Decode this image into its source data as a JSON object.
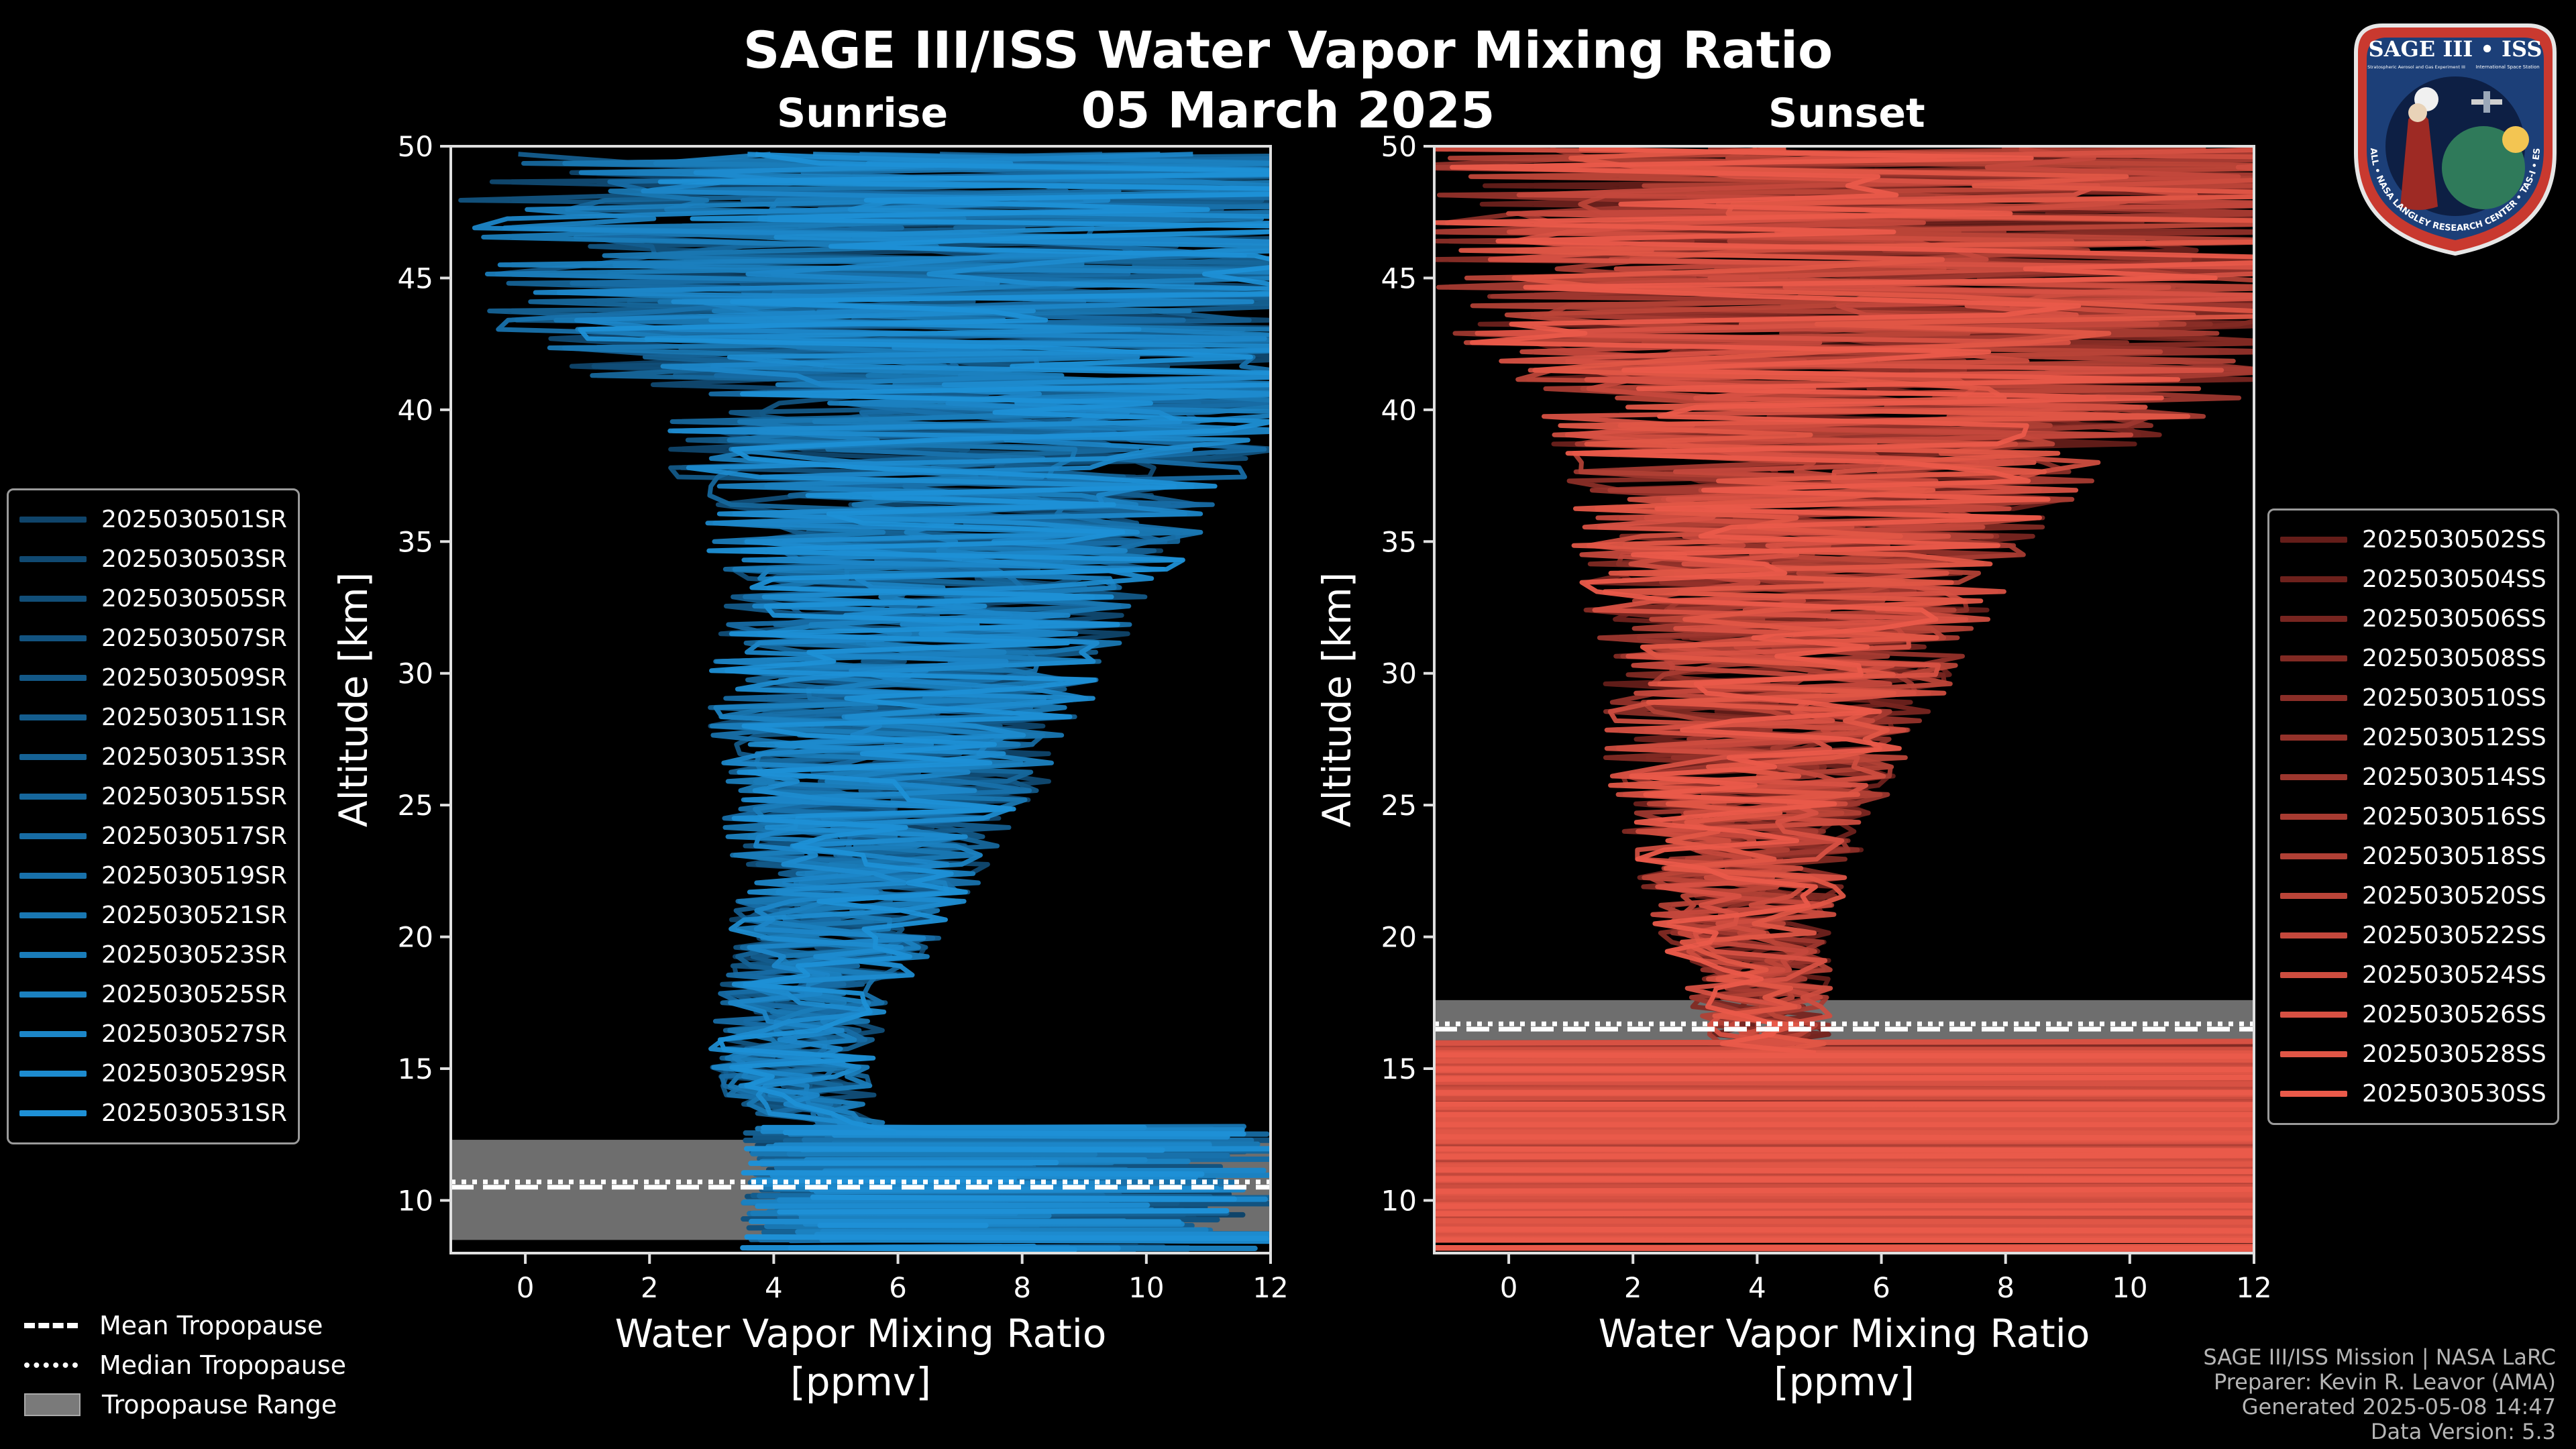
{
  "title": "SAGE III/ISS Water Vapor Mixing Ratio",
  "date": "05 March 2025",
  "colors": {
    "sunrise": "#1e90d6",
    "sunset": "#ea5a4a",
    "tropopause_range": "#7a7a7a",
    "background": "#000000"
  },
  "chart_data": [
    {
      "type": "line",
      "title": "Sunrise",
      "xlabel": "Water Vapor Mixing Ratio\n[ppmv]",
      "ylabel": "Altitude [km]",
      "xlim": [
        -1.2,
        12
      ],
      "ylim": [
        8,
        50
      ],
      "xticks": [
        0,
        2,
        4,
        6,
        8,
        10,
        12
      ],
      "yticks": [
        10,
        15,
        20,
        25,
        30,
        35,
        40,
        45,
        50
      ],
      "grid": false,
      "legend_position": "left",
      "series": [
        {
          "name": "2025030501SR"
        },
        {
          "name": "2025030503SR"
        },
        {
          "name": "2025030505SR"
        },
        {
          "name": "2025030507SR"
        },
        {
          "name": "2025030509SR"
        },
        {
          "name": "2025030511SR"
        },
        {
          "name": "2025030513SR"
        },
        {
          "name": "2025030515SR"
        },
        {
          "name": "2025030517SR"
        },
        {
          "name": "2025030519SR"
        },
        {
          "name": "2025030521SR"
        },
        {
          "name": "2025030523SR"
        },
        {
          "name": "2025030525SR"
        },
        {
          "name": "2025030527SR"
        },
        {
          "name": "2025030529SR"
        },
        {
          "name": "2025030531SR"
        }
      ],
      "envelope_center": [
        [
          12.5,
          5.3
        ],
        [
          13.5,
          4.5
        ],
        [
          15,
          4.3
        ],
        [
          17,
          4.4
        ],
        [
          19,
          4.9
        ],
        [
          22,
          5.3
        ],
        [
          25,
          5.7
        ],
        [
          28,
          5.9
        ],
        [
          31,
          6.3
        ],
        [
          34,
          6.8
        ],
        [
          37,
          6.9
        ],
        [
          40,
          7.5
        ],
        [
          43,
          7.5
        ],
        [
          50,
          7.5
        ]
      ],
      "envelope_width": [
        [
          12.5,
          0.8
        ],
        [
          14,
          1.2
        ],
        [
          16,
          1.4
        ],
        [
          19,
          1.6
        ],
        [
          22,
          2.0
        ],
        [
          25,
          2.6
        ],
        [
          28,
          3.0
        ],
        [
          32,
          3.4
        ],
        [
          36,
          4.2
        ],
        [
          40,
          5.4
        ],
        [
          43,
          8.0
        ],
        [
          50,
          9.0
        ]
      ],
      "tropopause": {
        "mean": 10.5,
        "median": 10.7,
        "range": [
          8.5,
          12.3
        ]
      }
    },
    {
      "type": "line",
      "title": "Sunset",
      "xlabel": "Water Vapor Mixing Ratio\n[ppmv]",
      "ylabel": "Altitude [km]",
      "xlim": [
        -1.2,
        12
      ],
      "ylim": [
        8,
        50
      ],
      "xticks": [
        0,
        2,
        4,
        6,
        8,
        10,
        12
      ],
      "yticks": [
        10,
        15,
        20,
        25,
        30,
        35,
        40,
        45,
        50
      ],
      "grid": false,
      "legend_position": "right",
      "series": [
        {
          "name": "2025030502SS"
        },
        {
          "name": "2025030504SS"
        },
        {
          "name": "2025030506SS"
        },
        {
          "name": "2025030508SS"
        },
        {
          "name": "2025030510SS"
        },
        {
          "name": "2025030512SS"
        },
        {
          "name": "2025030514SS"
        },
        {
          "name": "2025030516SS"
        },
        {
          "name": "2025030518SS"
        },
        {
          "name": "2025030520SS"
        },
        {
          "name": "2025030522SS"
        },
        {
          "name": "2025030524SS"
        },
        {
          "name": "2025030526SS"
        },
        {
          "name": "2025030528SS"
        },
        {
          "name": "2025030530SS"
        }
      ],
      "envelope_center": [
        [
          16,
          4.2
        ],
        [
          18,
          4.0
        ],
        [
          20,
          3.8
        ],
        [
          23,
          3.8
        ],
        [
          26,
          3.9
        ],
        [
          29,
          4.3
        ],
        [
          32,
          4.5
        ],
        [
          35,
          4.8
        ],
        [
          38,
          5.3
        ],
        [
          41,
          6.0
        ],
        [
          44,
          6.5
        ],
        [
          50,
          6.5
        ]
      ],
      "envelope_width": [
        [
          16,
          1.0
        ],
        [
          18,
          1.2
        ],
        [
          21,
          1.5
        ],
        [
          24,
          2.0
        ],
        [
          27,
          2.5
        ],
        [
          30,
          3.0
        ],
        [
          33,
          3.4
        ],
        [
          36,
          4.0
        ],
        [
          39,
          5.0
        ],
        [
          42,
          7.0
        ],
        [
          50,
          9.0
        ]
      ],
      "tropopause": {
        "mean": 16.5,
        "median": 16.7,
        "range": [
          15.8,
          17.6
        ]
      }
    }
  ],
  "bottom_legend": {
    "mean": "Mean Tropopause",
    "median": "Median Tropopause",
    "range": "Tropopause Range"
  },
  "credits": [
    "SAGE III/ISS Mission | NASA LaRC",
    "Preparer: Kevin R. Leavor (AMA)",
    "Generated 2025-05-08 14:47",
    "Data Version: 5.3"
  ],
  "badge": {
    "title": "SAGE III • ISS",
    "ring_text": "BALL • NASA LANGLEY RESEARCH CENTER • TAS-I • ESA",
    "subtitle_left": "Stratospheric Aerosol and Gas Experiment III",
    "subtitle_right": "International Space Station"
  }
}
